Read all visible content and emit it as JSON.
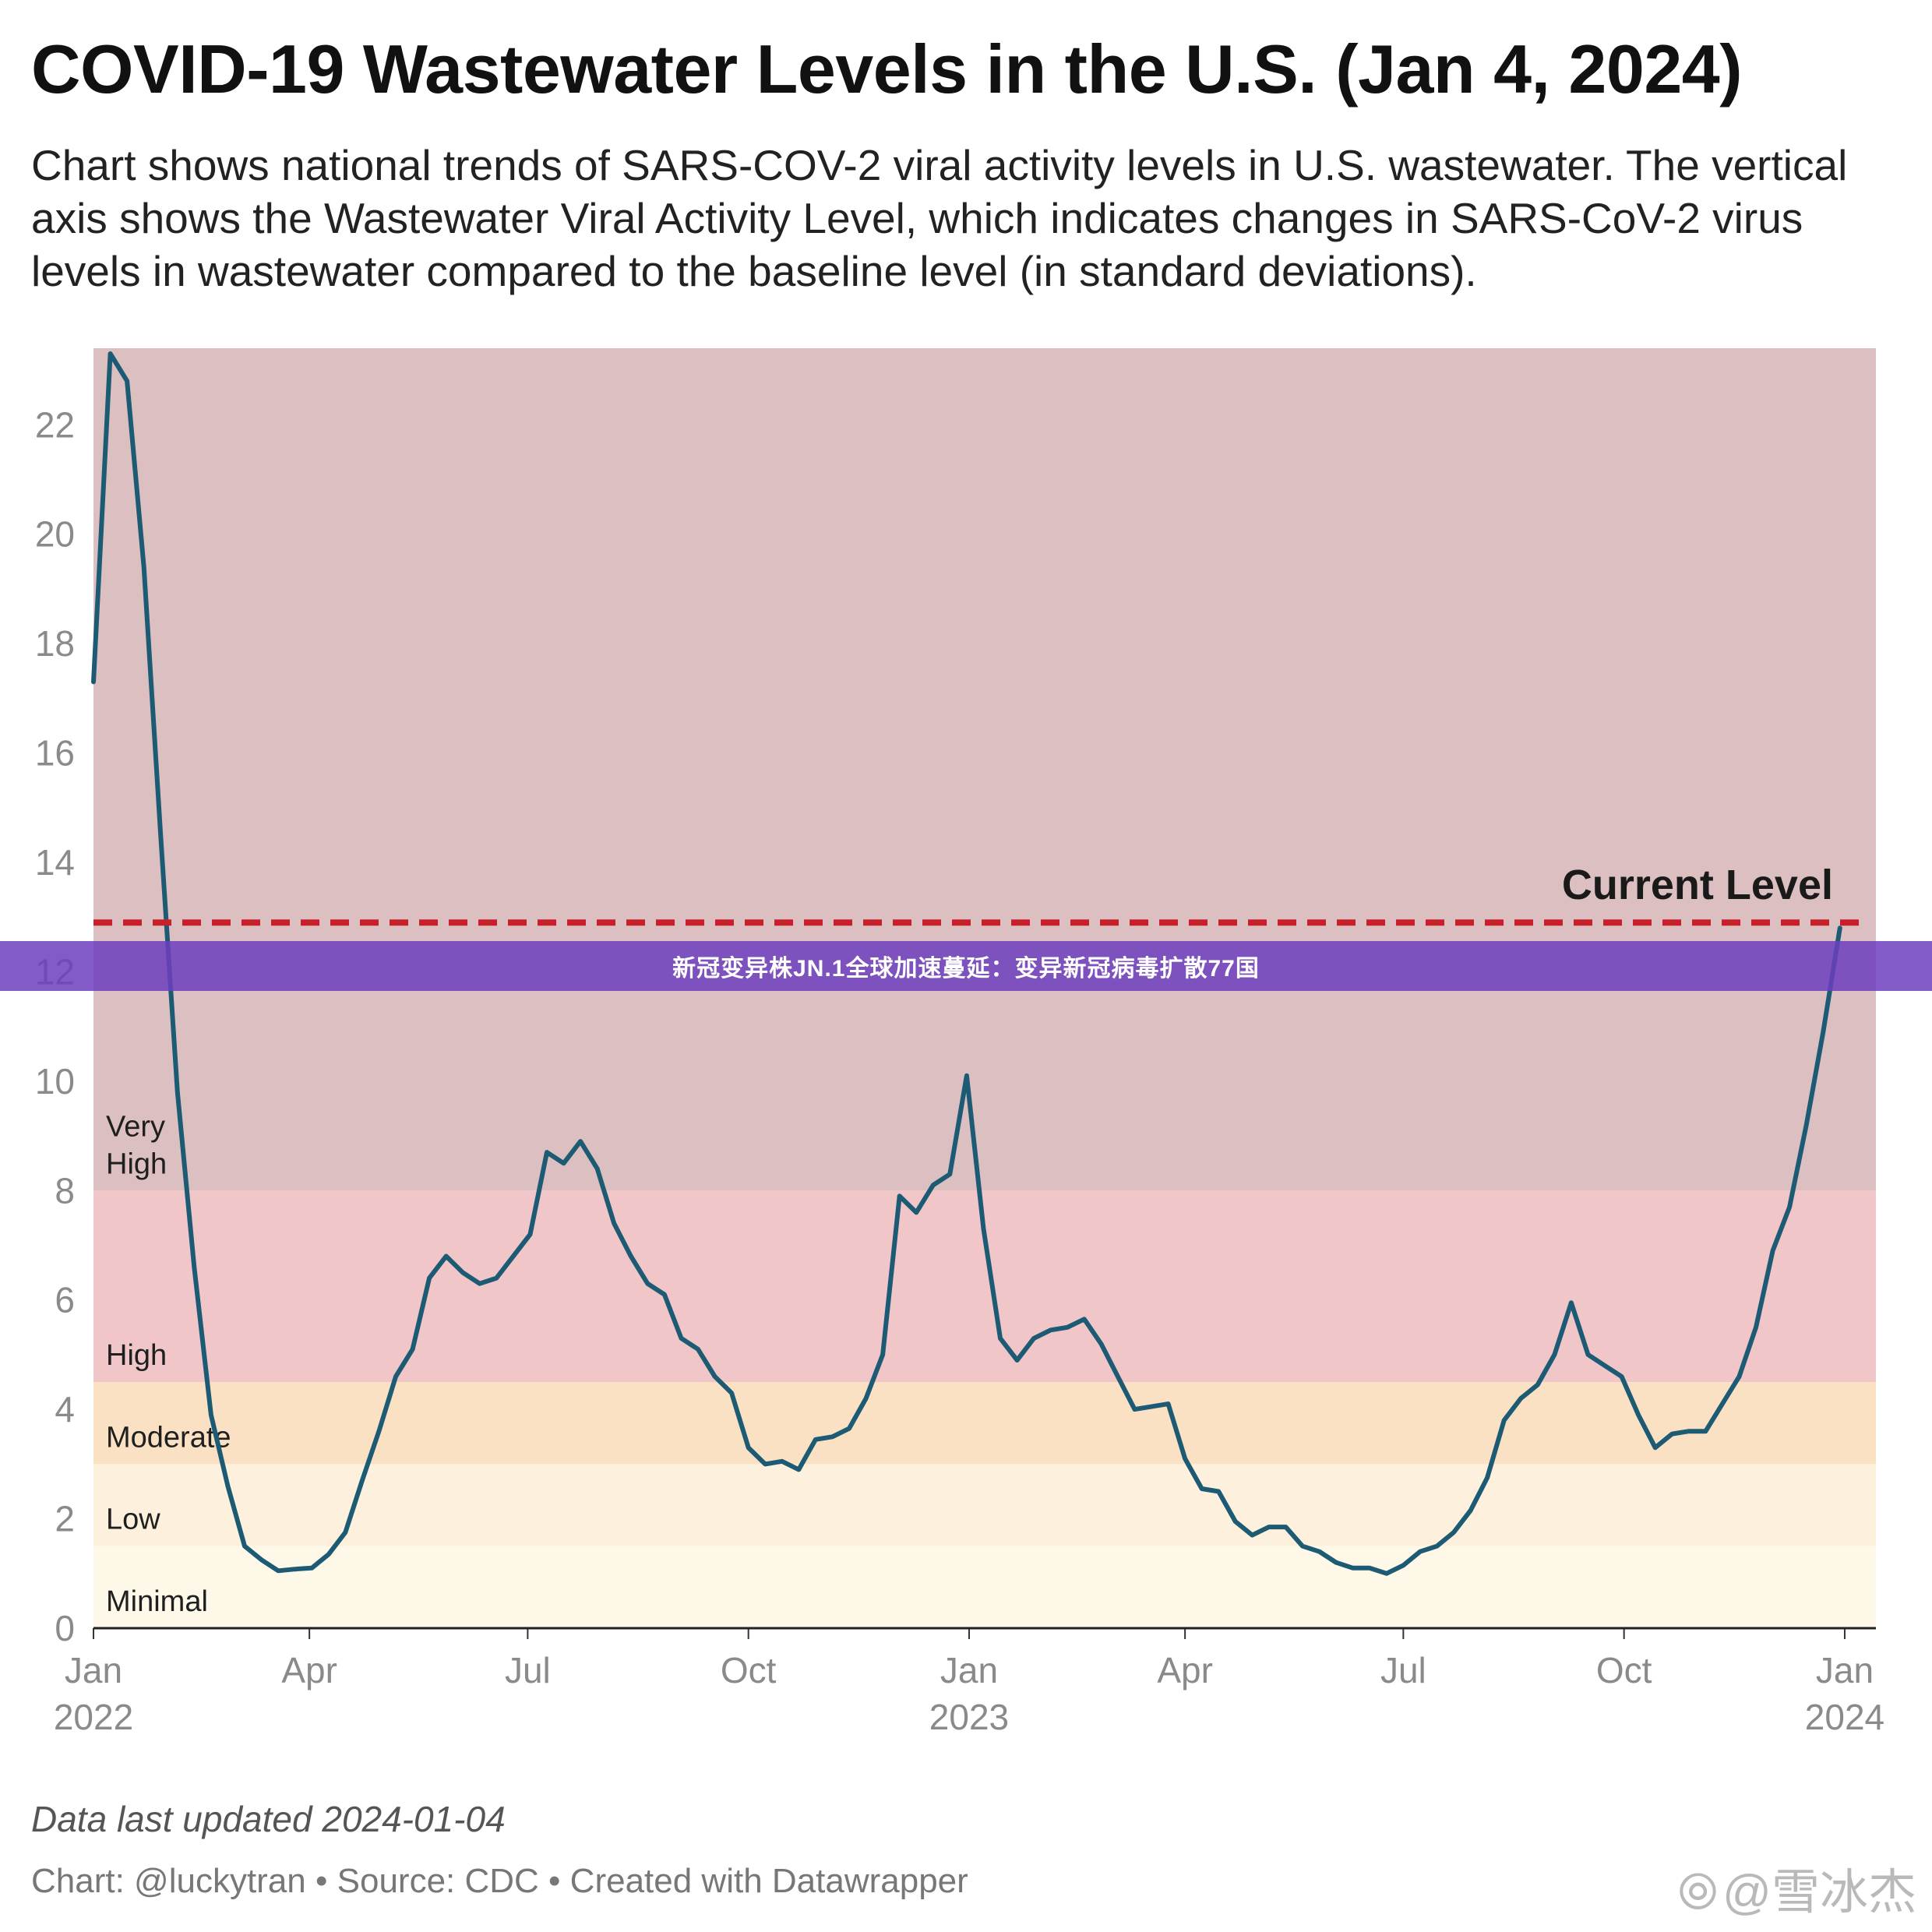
{
  "title": "COVID-19 Wastewater Levels in the U.S. (Jan 4, 2024)",
  "subtitle": "Chart shows national trends of SARS-COV-2 viral activity levels in U.S. wastewater. The vertical axis shows the Wastewater Viral Activity Level, which indicates changes in SARS-CoV-2 virus levels in wastewater compared to the baseline level (in standard deviations).",
  "footnote": "Data last updated 2024-01-04",
  "credit": "Chart: @luckytran • Source: CDC • Created with Datawrapper",
  "banner": "新冠变异株JN.1全球加速蔓延：变异新冠病毒扩散77国",
  "watermark": "@雪冰杰",
  "colors": {
    "line": "#1d5a73",
    "reference": "#c8202a",
    "very_high": "#dcbfc1",
    "high": "#f0c6c9",
    "moderate": "#fbe1c4",
    "low": "#fdf1dd",
    "minimal": "#fef8e9",
    "banner": "#6c3ebe"
  },
  "chart_data": {
    "type": "line",
    "title": "COVID-19 Wastewater Levels in the U.S. (Jan 4, 2024)",
    "xlabel": "",
    "ylabel": "",
    "ylim": [
      0,
      23.4
    ],
    "xlim": [
      "2022-01-01",
      "2024-01-14"
    ],
    "yticks": [
      0,
      2,
      4,
      6,
      8,
      10,
      12,
      14,
      16,
      18,
      20,
      22
    ],
    "xticks": [
      {
        "date": "2022-01-01",
        "label": "Jan",
        "year": "2022"
      },
      {
        "date": "2022-04-01",
        "label": "Apr",
        "year": ""
      },
      {
        "date": "2022-07-01",
        "label": "Jul",
        "year": ""
      },
      {
        "date": "2022-10-01",
        "label": "Oct",
        "year": ""
      },
      {
        "date": "2023-01-01",
        "label": "Jan",
        "year": "2023"
      },
      {
        "date": "2023-04-01",
        "label": "Apr",
        "year": ""
      },
      {
        "date": "2023-07-01",
        "label": "Jul",
        "year": ""
      },
      {
        "date": "2023-10-01",
        "label": "Oct",
        "year": ""
      },
      {
        "date": "2024-01-01",
        "label": "Jan",
        "year": "2024"
      }
    ],
    "bands": [
      {
        "label": "Minimal",
        "from": 0,
        "to": 1.5,
        "color": "#fef8e9"
      },
      {
        "label": "Low",
        "from": 1.5,
        "to": 3.0,
        "color": "#fdf1dd"
      },
      {
        "label": "Moderate",
        "from": 3.0,
        "to": 4.5,
        "color": "#fbe1c4"
      },
      {
        "label": "High",
        "from": 4.5,
        "to": 8.0,
        "color": "#f0c6c9"
      },
      {
        "label": "Very High",
        "from": 8.0,
        "to": 23.4,
        "color": "#dcbfc1"
      }
    ],
    "reference_line": {
      "label": "Current Level",
      "value": 12.9
    },
    "series": [
      {
        "color": "#1d5a73",
        "x": [
          "2022-01-01",
          "2022-01-08",
          "2022-01-15",
          "2022-01-22",
          "2022-01-29",
          "2022-02-05",
          "2022-02-12",
          "2022-02-19",
          "2022-02-26",
          "2022-03-05",
          "2022-03-12",
          "2022-03-19",
          "2022-03-26",
          "2022-04-02",
          "2022-04-09",
          "2022-04-16",
          "2022-04-23",
          "2022-04-30",
          "2022-05-07",
          "2022-05-14",
          "2022-05-21",
          "2022-05-28",
          "2022-06-04",
          "2022-06-11",
          "2022-06-18",
          "2022-06-25",
          "2022-07-02",
          "2022-07-09",
          "2022-07-16",
          "2022-07-23",
          "2022-07-30",
          "2022-08-06",
          "2022-08-13",
          "2022-08-20",
          "2022-08-27",
          "2022-09-03",
          "2022-09-10",
          "2022-09-17",
          "2022-09-24",
          "2022-10-01",
          "2022-10-08",
          "2022-10-15",
          "2022-10-22",
          "2022-10-29",
          "2022-11-05",
          "2022-11-12",
          "2022-11-19",
          "2022-11-26",
          "2022-12-03",
          "2022-12-10",
          "2022-12-17",
          "2022-12-24",
          "2022-12-31",
          "2023-01-07",
          "2023-01-14",
          "2023-01-21",
          "2023-01-28",
          "2023-02-04",
          "2023-02-11",
          "2023-02-18",
          "2023-02-25",
          "2023-03-04",
          "2023-03-11",
          "2023-03-18",
          "2023-03-25",
          "2023-04-01",
          "2023-04-08",
          "2023-04-15",
          "2023-04-22",
          "2023-04-29",
          "2023-05-06",
          "2023-05-13",
          "2023-05-20",
          "2023-05-27",
          "2023-06-03",
          "2023-06-10",
          "2023-06-17",
          "2023-06-24",
          "2023-07-01",
          "2023-07-08",
          "2023-07-15",
          "2023-07-22",
          "2023-07-29",
          "2023-08-05",
          "2023-08-12",
          "2023-08-19",
          "2023-08-26",
          "2023-09-02",
          "2023-09-09",
          "2023-09-16",
          "2023-09-23",
          "2023-09-30",
          "2023-10-07",
          "2023-10-14",
          "2023-10-21",
          "2023-10-28",
          "2023-11-04",
          "2023-11-11",
          "2023-11-18",
          "2023-11-25",
          "2023-12-02",
          "2023-12-09",
          "2023-12-16",
          "2023-12-23",
          "2023-12-30"
        ],
        "values": [
          17.3,
          23.3,
          22.8,
          19.4,
          14.5,
          9.8,
          6.6,
          3.9,
          2.6,
          1.5,
          1.25,
          1.05,
          1.08,
          1.1,
          1.35,
          1.75,
          2.7,
          3.6,
          4.6,
          5.1,
          6.4,
          6.8,
          6.5,
          6.3,
          6.4,
          6.8,
          7.2,
          8.7,
          8.5,
          8.9,
          8.4,
          7.4,
          6.8,
          6.3,
          6.1,
          5.3,
          5.1,
          4.6,
          4.3,
          3.3,
          3.0,
          3.05,
          2.9,
          3.45,
          3.5,
          3.65,
          4.2,
          5.0,
          7.9,
          7.6,
          8.1,
          8.3,
          10.1,
          7.3,
          5.3,
          4.9,
          5.3,
          5.45,
          5.5,
          5.65,
          5.2,
          4.6,
          4.0,
          4.05,
          4.1,
          3.1,
          2.55,
          2.5,
          1.95,
          1.7,
          1.85,
          1.85,
          1.5,
          1.4,
          1.2,
          1.1,
          1.1,
          1.0,
          1.15,
          1.4,
          1.5,
          1.75,
          2.15,
          2.75,
          3.8,
          4.2,
          4.45,
          5.0,
          5.95,
          5.0,
          4.8,
          4.6,
          3.9,
          3.3,
          3.55,
          3.6,
          3.6,
          4.1,
          4.6,
          5.5,
          6.9,
          7.7,
          9.2,
          10.9,
          12.8
        ]
      }
    ]
  }
}
